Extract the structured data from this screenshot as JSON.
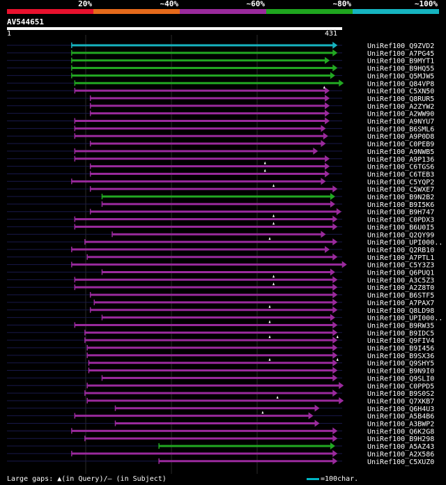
{
  "legend": {
    "bands": [
      {
        "color": "#e8112d",
        "label": "20%"
      },
      {
        "color": "#e56a1b",
        "label": "~40%"
      },
      {
        "color": "#9a2a9d",
        "label": "~60%"
      },
      {
        "color": "#1fa51f",
        "label": "~80%"
      },
      {
        "color": "#16b4c0",
        "label": "~100%"
      }
    ]
  },
  "query": {
    "name": "AV544651",
    "start": "1",
    "end": "431",
    "length": 431
  },
  "colors": {
    "cyan": "#16b4c0",
    "green": "#22a822",
    "purple": "#9a2a9d",
    "line": "#18184a",
    "tick": "#2a2a2a"
  },
  "hits": [
    {
      "name": "UniRef100_Q9ZVD2",
      "c": "cyan",
      "s": 84,
      "e": 425,
      "g": []
    },
    {
      "name": "UniRef100_A7PG45",
      "c": "green",
      "s": 84,
      "e": 425,
      "g": []
    },
    {
      "name": "UniRef100_B9MYT1",
      "c": "green",
      "s": 84,
      "e": 415,
      "g": []
    },
    {
      "name": "UniRef100_B9HQ55",
      "c": "green",
      "s": 84,
      "e": 425,
      "g": []
    },
    {
      "name": "UniRef100_Q5MJW5",
      "c": "green",
      "s": 84,
      "e": 422,
      "g": []
    },
    {
      "name": "UniRef100_Q84VP8",
      "c": "green",
      "s": 88,
      "e": 433,
      "g": []
    },
    {
      "name": "UniRef100_C5XN50",
      "c": "purple",
      "s": 88,
      "e": 415,
      "g": [
        408
      ]
    },
    {
      "name": "UniRef100_Q8RUR5",
      "c": "purple",
      "s": 108,
      "e": 415,
      "g": []
    },
    {
      "name": "UniRef100_A2ZYW2",
      "c": "purple",
      "s": 108,
      "e": 415,
      "g": []
    },
    {
      "name": "UniRef100_A2WW90",
      "c": "purple",
      "s": 108,
      "e": 415,
      "g": []
    },
    {
      "name": "UniRef100_A9NYU7",
      "c": "purple",
      "s": 88,
      "e": 415,
      "g": []
    },
    {
      "name": "UniRef100_B6SML6",
      "c": "purple",
      "s": 88,
      "e": 410,
      "g": []
    },
    {
      "name": "UniRef100_A9P0D8",
      "c": "purple",
      "s": 88,
      "e": 413,
      "g": []
    },
    {
      "name": "UniRef100_C0PEB9",
      "c": "purple",
      "s": 108,
      "e": 410,
      "g": []
    },
    {
      "name": "UniRef100_A9NWB5",
      "c": "purple",
      "s": 88,
      "e": 400,
      "g": []
    },
    {
      "name": "UniRef100_A9P136",
      "c": "purple",
      "s": 88,
      "e": 415,
      "g": []
    },
    {
      "name": "UniRef100_C6TGS6",
      "c": "purple",
      "s": 108,
      "e": 415,
      "g": [
        332
      ]
    },
    {
      "name": "UniRef100_C6TEB3",
      "c": "purple",
      "s": 108,
      "e": 415,
      "g": [
        332
      ]
    },
    {
      "name": "UniRef100_C5YQP2",
      "c": "purple",
      "s": 84,
      "e": 410,
      "g": []
    },
    {
      "name": "UniRef100_C5WXE7",
      "c": "purple",
      "s": 108,
      "e": 425,
      "g": [
        343
      ]
    },
    {
      "name": "UniRef100_B9N2B2",
      "c": "green",
      "s": 123,
      "e": 422,
      "g": []
    },
    {
      "name": "UniRef100_B9I5K6",
      "c": "purple",
      "s": 123,
      "e": 422,
      "g": []
    },
    {
      "name": "UniRef100_B9H747",
      "c": "purple",
      "s": 108,
      "e": 430,
      "g": []
    },
    {
      "name": "UniRef100_C0PDX3",
      "c": "purple",
      "s": 88,
      "e": 425,
      "g": [
        343
      ]
    },
    {
      "name": "UniRef100_B6U0I5",
      "c": "purple",
      "s": 88,
      "e": 425,
      "g": [
        343
      ]
    },
    {
      "name": "UniRef100_Q2QY99",
      "c": "purple",
      "s": 136,
      "e": 410,
      "g": []
    },
    {
      "name": "UniRef100_UPI000..",
      "c": "purple",
      "s": 101,
      "e": 425,
      "g": [
        338
      ]
    },
    {
      "name": "UniRef100_Q2RB10",
      "c": "purple",
      "s": 84,
      "e": 415,
      "g": []
    },
    {
      "name": "UniRef100_A7PTL1",
      "c": "purple",
      "s": 104,
      "e": 425,
      "g": []
    },
    {
      "name": "UniRef100_C5Y3Z3",
      "c": "purple",
      "s": 84,
      "e": 437,
      "g": []
    },
    {
      "name": "UniRef100_Q6PUQ1",
      "c": "purple",
      "s": 123,
      "e": 422,
      "g": []
    },
    {
      "name": "UniRef100_A3C5Z3",
      "c": "purple",
      "s": 88,
      "e": 425,
      "g": [
        343
      ]
    },
    {
      "name": "UniRef100_A2Z8T0",
      "c": "purple",
      "s": 88,
      "e": 425,
      "g": [
        343
      ]
    },
    {
      "name": "UniRef100_B6STF5",
      "c": "purple",
      "s": 108,
      "e": 425,
      "g": []
    },
    {
      "name": "UniRef100_A7PAX7",
      "c": "purple",
      "s": 113,
      "e": 425,
      "g": []
    },
    {
      "name": "UniRef100_Q8LD98",
      "c": "purple",
      "s": 108,
      "e": 425,
      "g": [
        338
      ]
    },
    {
      "name": "UniRef100_UPI000..",
      "c": "purple",
      "s": 123,
      "e": 422,
      "g": []
    },
    {
      "name": "UniRef100_B9RW35",
      "c": "purple",
      "s": 88,
      "e": 425,
      "g": [
        338
      ]
    },
    {
      "name": "UniRef100_B9IDC5",
      "c": "purple",
      "s": 101,
      "e": 425,
      "g": []
    },
    {
      "name": "UniRef100_Q9FIV4",
      "c": "purple",
      "s": 101,
      "e": 425,
      "g": [
        338,
        425
      ]
    },
    {
      "name": "UniRef100_B9I456",
      "c": "purple",
      "s": 104,
      "e": 425,
      "g": []
    },
    {
      "name": "UniRef100_B9SX36",
      "c": "purple",
      "s": 104,
      "e": 425,
      "g": []
    },
    {
      "name": "UniRef100_Q9SHY5",
      "c": "purple",
      "s": 106,
      "e": 425,
      "g": [
        338,
        425
      ]
    },
    {
      "name": "UniRef100_B9N9I0",
      "c": "purple",
      "s": 106,
      "e": 425,
      "g": []
    },
    {
      "name": "UniRef100_Q9SLI0",
      "c": "purple",
      "s": 123,
      "e": 425,
      "g": []
    },
    {
      "name": "UniRef100_C0PPD5",
      "c": "purple",
      "s": 104,
      "e": 433,
      "g": []
    },
    {
      "name": "UniRef100_B9S0S2",
      "c": "purple",
      "s": 101,
      "e": 425,
      "g": []
    },
    {
      "name": "UniRef100_Q7XKB7",
      "c": "purple",
      "s": 104,
      "e": 433,
      "g": [
        348
      ]
    },
    {
      "name": "UniRef100_Q6H4U3",
      "c": "purple",
      "s": 140,
      "e": 402,
      "g": []
    },
    {
      "name": "UniRef100_A5B4B6",
      "c": "purple",
      "s": 88,
      "e": 394,
      "g": [
        329
      ]
    },
    {
      "name": "UniRef100_A3BWP2",
      "c": "purple",
      "s": 140,
      "e": 402,
      "g": []
    },
    {
      "name": "UniRef100_Q6K2G8",
      "c": "purple",
      "s": 84,
      "e": 425,
      "g": []
    },
    {
      "name": "UniRef100_B9H298",
      "c": "purple",
      "s": 101,
      "e": 425,
      "g": []
    },
    {
      "name": "UniRef100_A5AZ43",
      "c": "green",
      "s": 196,
      "e": 422,
      "g": []
    },
    {
      "name": "UniRef100_A2X586",
      "c": "purple",
      "s": 84,
      "e": 425,
      "g": []
    },
    {
      "name": "UniRef100_C5XUZ0",
      "c": "purple",
      "s": 196,
      "e": 425,
      "g": []
    }
  ],
  "footer": {
    "text": "Large gaps: ▲(in Query)/– (in Subject)",
    "scale": "=100char."
  }
}
